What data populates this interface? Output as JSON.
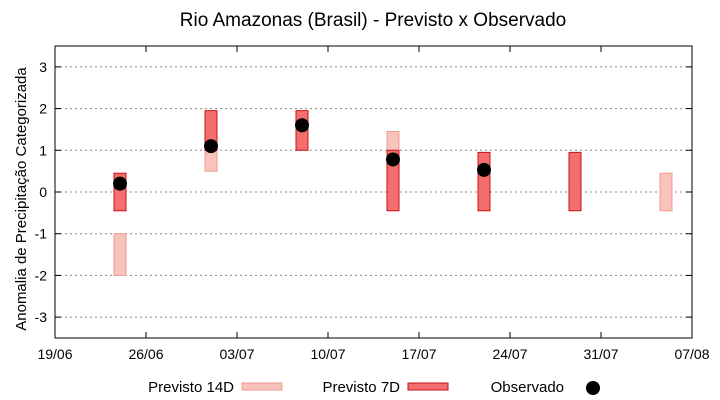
{
  "chart_data": {
    "type": "range-bar",
    "title": "Rio Amazonas (Brasil) - Previsto x Observado",
    "xlabel": "",
    "ylabel": "Anomalia de Precipitação Categorizada",
    "x_ticks": [
      "19/06",
      "26/06",
      "03/07",
      "10/07",
      "17/07",
      "24/07",
      "31/07",
      "07/08"
    ],
    "ylim": [
      -3.5,
      3.5
    ],
    "y_ticks": [
      3,
      2,
      1,
      0,
      -1,
      -2,
      -3
    ],
    "y_tick_labels": [
      "3",
      "2",
      "1",
      "0",
      "-1",
      "-2",
      "-3"
    ],
    "grid": true,
    "legend_position": "bottom",
    "colors": {
      "p14_fill": "#f9c3bd",
      "p14_stroke": "#f09a90",
      "p7_fill": "#f56e6e",
      "p7_stroke": "#c81414",
      "observed": "#000000"
    },
    "series": [
      {
        "name": "Previsto 14D",
        "kind": "range",
        "points": [
          {
            "x_day": 5,
            "low": -2.0,
            "high": -1.0
          },
          {
            "x_day": 12,
            "low": 0.5,
            "high": 1.4
          },
          {
            "x_day": 26,
            "low": 0.5,
            "high": 1.45
          },
          {
            "x_day": 47,
            "low": -0.45,
            "high": 0.45
          }
        ]
      },
      {
        "name": "Previsto 7D",
        "kind": "range",
        "points": [
          {
            "x_day": 5,
            "low": -0.45,
            "high": 0.45
          },
          {
            "x_day": 12,
            "low": 1.0,
            "high": 1.95
          },
          {
            "x_day": 19,
            "low": 1.0,
            "high": 1.95
          },
          {
            "x_day": 26,
            "low": -0.45,
            "high": 1.0
          },
          {
            "x_day": 33,
            "low": -0.45,
            "high": 0.95
          },
          {
            "x_day": 40,
            "low": -0.45,
            "high": 0.95
          }
        ]
      },
      {
        "name": "Observado",
        "kind": "point",
        "points": [
          {
            "x_day": 5,
            "y": 0.2
          },
          {
            "x_day": 12,
            "y": 1.1
          },
          {
            "x_day": 19,
            "y": 1.6
          },
          {
            "x_day": 26,
            "y": 0.78
          },
          {
            "x_day": 33,
            "y": 0.53
          }
        ]
      }
    ]
  }
}
